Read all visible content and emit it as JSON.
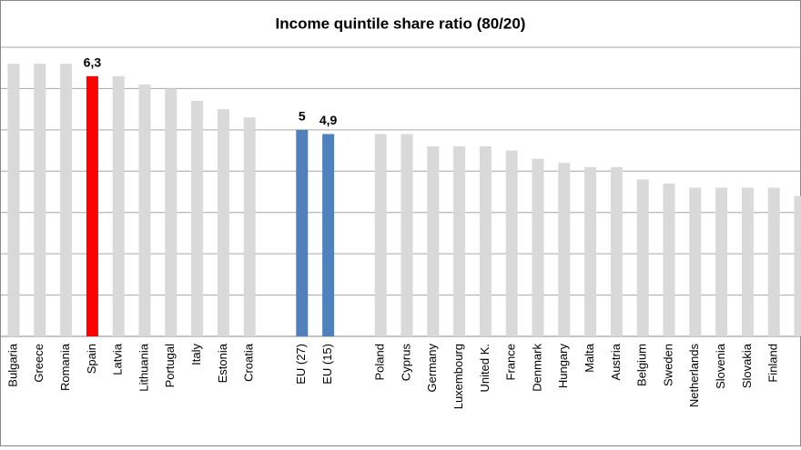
{
  "chart_data": {
    "type": "bar",
    "title": "Income quintile share ratio (80/20)",
    "categories": [
      "Bulgaria",
      "Greece",
      "Romania",
      "Spain",
      "Latvia",
      "Lithuania",
      "Portugal",
      "Italy",
      "Estonia",
      "Croatia",
      null,
      "EU (27)",
      "EU (15)",
      null,
      "Poland",
      "Cyprus",
      "Germany",
      "Luxembourg",
      "United K.",
      "France",
      "Denmark",
      "Hungary",
      "Malta",
      "Austria",
      "Belgium",
      "Sweden",
      "Netherlands",
      "Slovenia",
      "Slovakia",
      "Finland",
      null
    ],
    "values": [
      6.6,
      6.6,
      6.6,
      6.3,
      6.3,
      6.1,
      6.0,
      5.7,
      5.5,
      5.3,
      null,
      5,
      4.9,
      null,
      4.9,
      4.9,
      4.6,
      4.6,
      4.6,
      4.5,
      4.3,
      4.2,
      4.1,
      4.1,
      3.8,
      3.7,
      3.6,
      3.6,
      3.6,
      3.6,
      3.4
    ],
    "value_labels": [
      null,
      null,
      null,
      "6,3",
      null,
      null,
      null,
      null,
      null,
      null,
      null,
      "5",
      "4,9",
      null,
      null,
      null,
      null,
      null,
      null,
      null,
      null,
      null,
      null,
      null,
      null,
      null,
      null,
      null,
      null,
      null,
      null
    ],
    "colors": [
      "#d9d9d9",
      "#d9d9d9",
      "#d9d9d9",
      "#ff0000",
      "#d9d9d9",
      "#d9d9d9",
      "#d9d9d9",
      "#d9d9d9",
      "#d9d9d9",
      "#d9d9d9",
      null,
      "#4f81bd",
      "#4f81bd",
      null,
      "#d9d9d9",
      "#d9d9d9",
      "#d9d9d9",
      "#d9d9d9",
      "#d9d9d9",
      "#d9d9d9",
      "#d9d9d9",
      "#d9d9d9",
      "#d9d9d9",
      "#d9d9d9",
      "#d9d9d9",
      "#d9d9d9",
      "#d9d9d9",
      "#d9d9d9",
      "#d9d9d9",
      "#d9d9d9",
      "#d9d9d9"
    ],
    "ylim": [
      0,
      7
    ],
    "yticks": [
      0,
      1,
      2,
      3,
      4,
      5,
      6,
      7
    ],
    "grid": true
  }
}
